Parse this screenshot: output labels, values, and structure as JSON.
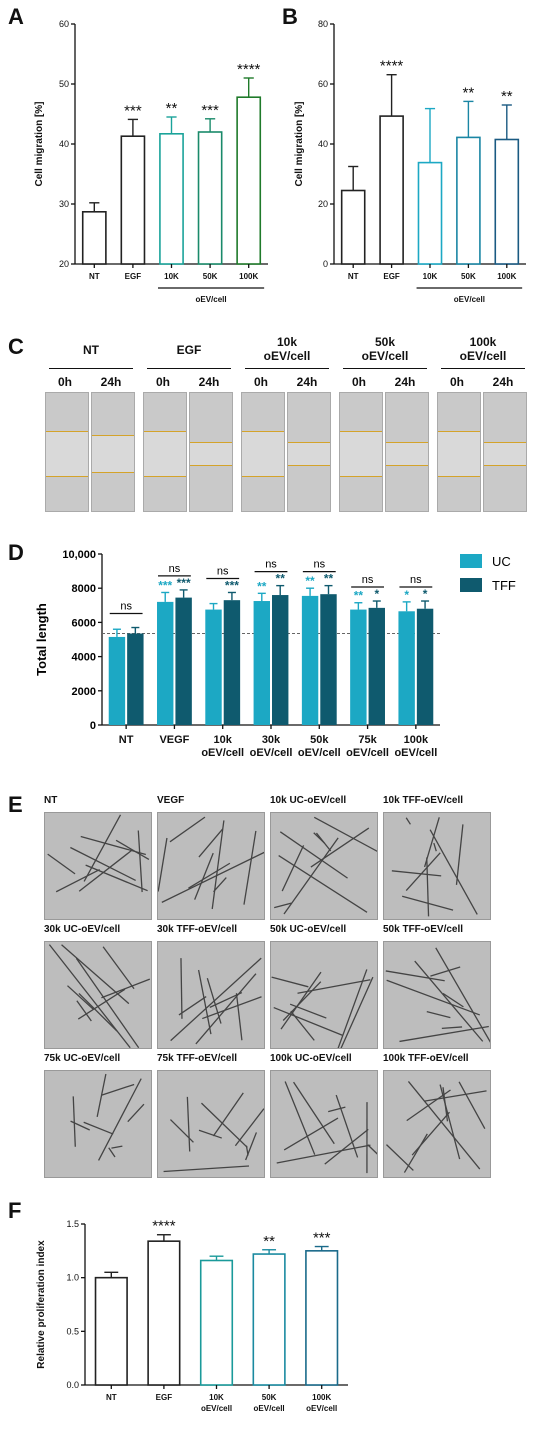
{
  "panels": {
    "a": "A",
    "b": "B",
    "c": "C",
    "d": "D",
    "e": "E",
    "f": "F"
  },
  "chart_data": [
    {
      "id": "A",
      "type": "bar",
      "ylabel": "Cell migration [%]",
      "ylim": [
        20,
        60
      ],
      "yticks": [
        "20",
        "30",
        "40",
        "50",
        "60"
      ],
      "categories": [
        "NT",
        "EGF",
        "10K",
        "50K",
        "100K"
      ],
      "values": [
        28.7,
        41.3,
        41.7,
        42.0,
        47.8
      ],
      "errors": [
        1.5,
        2.8,
        2.8,
        2.2,
        3.2
      ],
      "significance": [
        "",
        "***",
        "**",
        "***",
        "****"
      ],
      "colors": [
        "#222222",
        "#222222",
        "#1aa39a",
        "#1a8a6a",
        "#1f7a2a"
      ],
      "group_label": "oEV/cell",
      "grid": false
    },
    {
      "id": "B",
      "type": "bar",
      "ylabel": "Cell migration [%]",
      "ylim": [
        0,
        80
      ],
      "yticks": [
        "0",
        "20",
        "40",
        "60",
        "80"
      ],
      "categories": [
        "NT",
        "EGF",
        "10K",
        "50K",
        "100K"
      ],
      "values": [
        24.5,
        49.3,
        33.8,
        42.2,
        41.5
      ],
      "errors": [
        8.0,
        13.8,
        18.0,
        12.0,
        11.5
      ],
      "significance": [
        "",
        "****",
        "",
        "**",
        "**"
      ],
      "colors": [
        "#222222",
        "#222222",
        "#1ca8c4",
        "#1a86a4",
        "#1a5a82"
      ],
      "group_label": "oEV/cell",
      "grid": false
    },
    {
      "id": "D",
      "type": "bar",
      "ylabel": "Total length",
      "ylim": [
        0,
        10000
      ],
      "yticks": [
        "0",
        "2000",
        "4000",
        "6000",
        "8000",
        "10,000"
      ],
      "categories": [
        "NT",
        "VEGF",
        "10k\noEV/cell",
        "30k\noEV/cell",
        "50k\noEV/cell",
        "75k\noEV/cell",
        "100k\noEV/cell"
      ],
      "series": [
        {
          "name": "UC",
          "color": "#1ca8c4",
          "values": [
            5150,
            7200,
            6750,
            7250,
            7550,
            6750,
            6650
          ],
          "errors": [
            450,
            550,
            350,
            450,
            450,
            400,
            550
          ],
          "significance": [
            "",
            "***",
            "",
            "**",
            "**",
            "**",
            "*"
          ]
        },
        {
          "name": "TFF",
          "color": "#0f5a6e",
          "values": [
            5350,
            7450,
            7300,
            7600,
            7650,
            6850,
            6800
          ],
          "errors": [
            350,
            450,
            450,
            550,
            500,
            400,
            450
          ],
          "significance": [
            "",
            "***",
            "***",
            "**",
            "**",
            "*",
            "*"
          ]
        }
      ],
      "pair_labels": [
        "ns",
        "ns",
        "ns",
        "ns",
        "ns",
        "ns",
        "ns"
      ],
      "reference_line": 5350,
      "legend_position": "top-right"
    },
    {
      "id": "F",
      "type": "bar",
      "ylabel": "Relative proliferation index",
      "ylim": [
        0,
        1.5
      ],
      "yticks": [
        "0.0",
        "0.5",
        "1.0",
        "1.5"
      ],
      "categories": [
        "NT",
        "EGF",
        "10K\noEV/cell",
        "50K\noEV/cell",
        "100K\noEV/cell"
      ],
      "values": [
        1.0,
        1.34,
        1.16,
        1.22,
        1.25
      ],
      "errors": [
        0.05,
        0.06,
        0.04,
        0.04,
        0.04
      ],
      "significance": [
        "",
        "****",
        "",
        "**",
        "***"
      ],
      "colors": [
        "#222222",
        "#222222",
        "#1a9a9a",
        "#1a8aa0",
        "#1a6a8a"
      ],
      "grid": false
    }
  ],
  "scratch": {
    "groups": [
      {
        "label": "NT",
        "times": [
          "0h",
          "24h"
        ]
      },
      {
        "label": "EGF",
        "times": [
          "0h",
          "24h"
        ]
      },
      {
        "label": "10k\noEV/cell",
        "times": [
          "0h",
          "24h"
        ]
      },
      {
        "label": "50k\noEV/cell",
        "times": [
          "0h",
          "24h"
        ]
      },
      {
        "label": "100k\noEV/cell",
        "times": [
          "0h",
          "24h"
        ]
      }
    ]
  },
  "tube_images": [
    "NT",
    "VEGF",
    "10k UC-oEV/cell",
    "10k TFF-oEV/cell",
    "30k UC-oEV/cell",
    "30k TFF-oEV/cell",
    "50k UC-oEV/cell",
    "50k TFF-oEV/cell",
    "75k UC-oEV/cell",
    "75k TFF-oEV/cell",
    "100k UC-oEV/cell",
    "100k TFF-oEV/cell"
  ]
}
